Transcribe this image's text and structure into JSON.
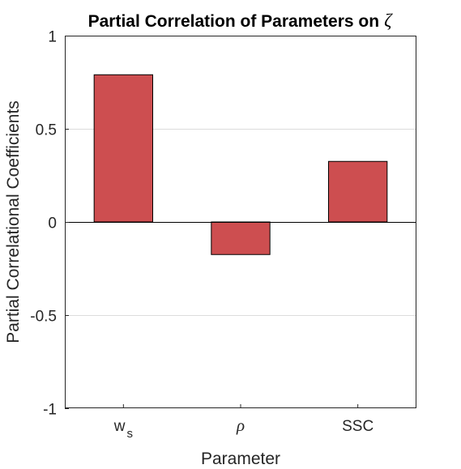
{
  "chart_data": {
    "type": "bar",
    "title": "Partial Correlation of Parameters on",
    "title_symbol": "ζ",
    "xlabel": "Parameter",
    "ylabel": "Partial Correlational Coefficients",
    "categories": [
      {
        "base": "w",
        "sub": "s",
        "italic": false
      },
      {
        "base": "ρ",
        "sub": "",
        "italic": true
      },
      {
        "base": "SSC",
        "sub": "",
        "italic": false
      }
    ],
    "values": [
      0.79,
      -0.175,
      0.325
    ],
    "ylim": [
      -1,
      1
    ],
    "yticks": [
      1,
      0.5,
      0,
      -0.5,
      -1
    ],
    "ytick_labels": [
      "1",
      "0.5",
      "0",
      "-0.5",
      "-1"
    ],
    "grid": "horizontal",
    "bar_color": "#cd4e50",
    "bar_edge_color": "#000000"
  }
}
